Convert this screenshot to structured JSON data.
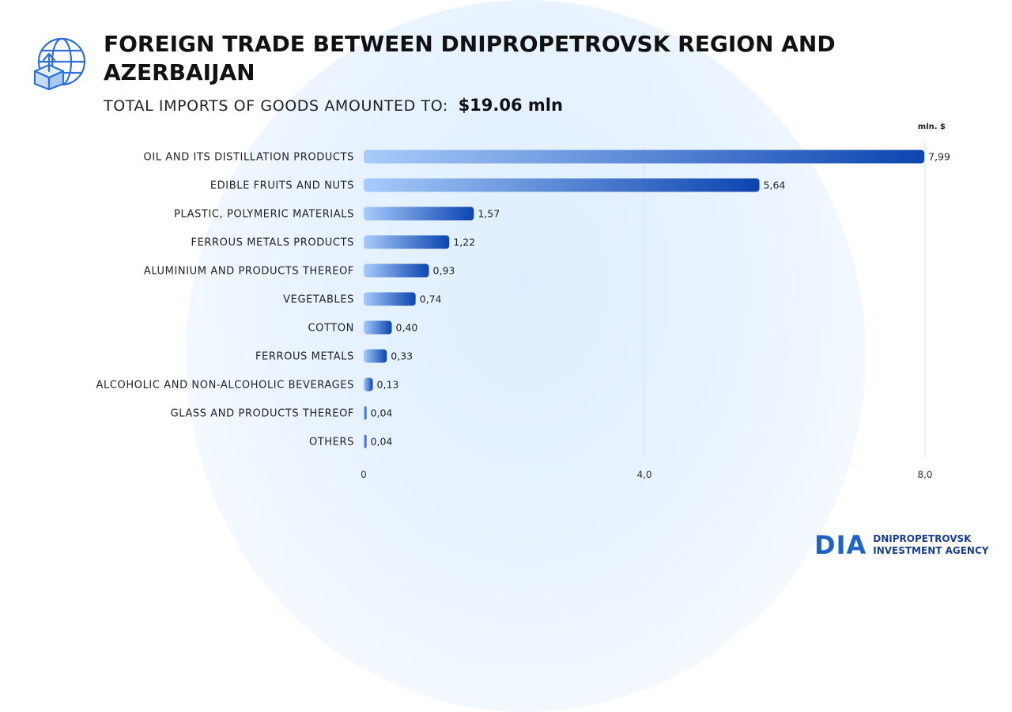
{
  "header": {
    "title": "FOREIGN TRADE BETWEEN DNIPROPETROVSK REGION AND AZERBAIJAN",
    "subtitle_label": "TOTAL IMPORTS OF GOODS AMOUNTED TO:",
    "subtitle_value": "$19.06 mln",
    "icon": "globe-box-upload-icon"
  },
  "chart_data": {
    "type": "bar",
    "orientation": "horizontal",
    "unit": "mln. $",
    "categories": [
      "OIL AND ITS DISTILLATION PRODUCTS",
      "EDIBLE FRUITS AND NUTS",
      "PLASTIC, POLYMERIC MATERIALS",
      "FERROUS METALS PRODUCTS",
      "ALUMINIUM AND PRODUCTS THEREOF",
      "VEGETABLES",
      "COTTON",
      "FERROUS METALS",
      "ALCOHOLIC AND NON-ALCOHOLIC BEVERAGES",
      "GLASS AND PRODUCTS THEREOF",
      "OTHERS"
    ],
    "values": [
      7.99,
      5.64,
      1.57,
      1.22,
      0.93,
      0.74,
      0.4,
      0.33,
      0.13,
      0.04,
      0.04
    ],
    "value_labels": [
      "7,99",
      "5,64",
      "1,57",
      "1,22",
      "0,93",
      "0,74",
      "0,40",
      "0,33",
      "0,13",
      "0,04",
      "0,04"
    ],
    "xlim": [
      0,
      8.0
    ],
    "ticks": [
      0,
      4.0,
      8.0
    ],
    "tick_labels": [
      "0",
      "4,0",
      "8,0"
    ],
    "grid": true,
    "colors": {
      "bar_start": "#a8cbfb",
      "bar_end": "#0c45b0"
    }
  },
  "footer": {
    "logo_mark": "DIA",
    "logo_line1": "DNIPROPETROVSK",
    "logo_line2": "INVESTMENT AGENCY",
    "brand_color": "#1f63c4"
  }
}
